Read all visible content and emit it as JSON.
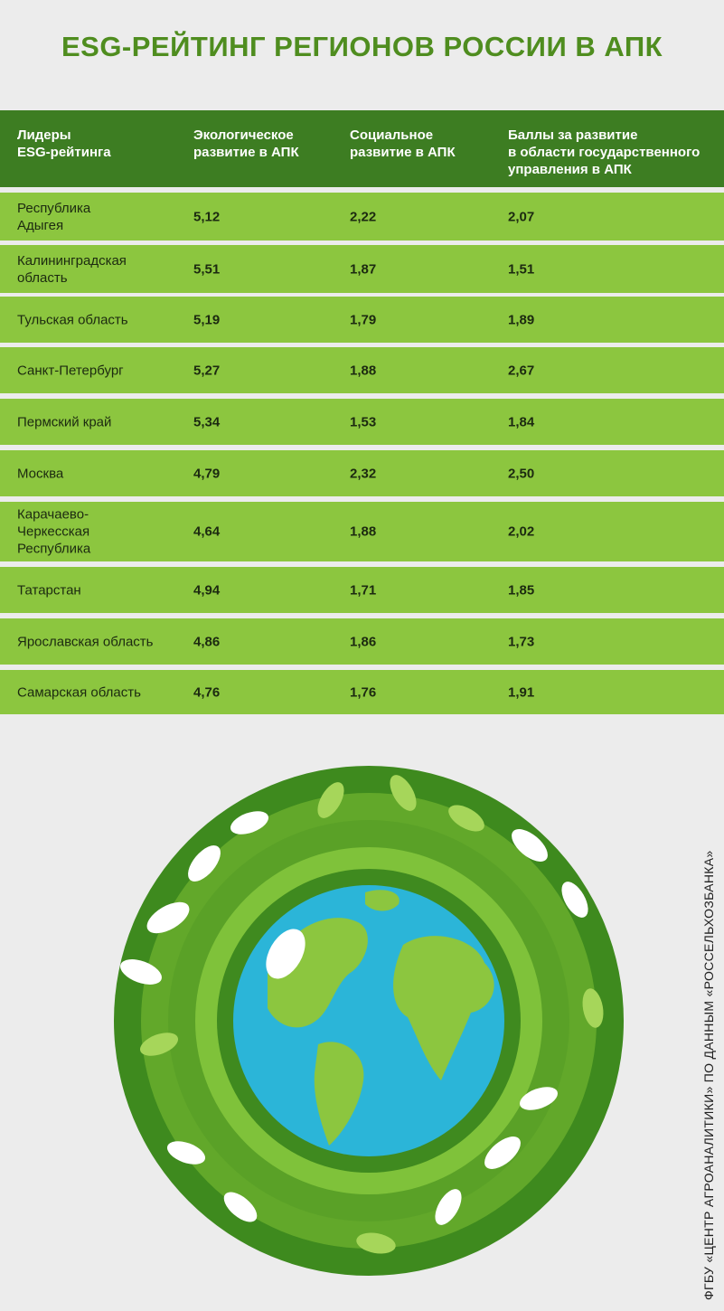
{
  "title": "ESG-РЕЙТИНГ РЕГИОНОВ РОССИИ В АПК",
  "colors": {
    "header_bg": "#3d7d22",
    "row_bg": "#8cc63f",
    "title": "#4f8d1f",
    "page_bg": "#ececec"
  },
  "chart_data": {
    "type": "table",
    "columns": [
      "Лидеры\nESG-рейтинга",
      "Экологическое\nразвитие в АПК",
      "Социальное\nразвитие в АПК",
      "Баллы за развитие\nв области государственного\nуправления в АПК"
    ],
    "rows": [
      {
        "region": "Республика\nАдыгея",
        "eco": "5,12",
        "social": "2,22",
        "gov": "2,07"
      },
      {
        "region": "Калининградская\nобласть",
        "eco": "5,51",
        "social": "1,87",
        "gov": "1,51"
      },
      {
        "region": "Тульская область",
        "eco": "5,19",
        "social": "1,79",
        "gov": "1,89"
      },
      {
        "region": "Санкт-Петербург",
        "eco": "5,27",
        "social": "1,88",
        "gov": "2,67"
      },
      {
        "region": "Пермский край",
        "eco": "5,34",
        "social": "1,53",
        "gov": "1,84"
      },
      {
        "region": "Москва",
        "eco": "4,79",
        "social": "2,32",
        "gov": "2,50"
      },
      {
        "region": "Карачаево-\nЧеркесская\nРеспублика",
        "eco": "4,64",
        "social": "1,88",
        "gov": "2,02"
      },
      {
        "region": "Татарстан",
        "eco": "4,94",
        "social": "1,71",
        "gov": "1,85"
      },
      {
        "region": "Ярославская область",
        "eco": "4,86",
        "social": "1,86",
        "gov": "1,73"
      },
      {
        "region": "Самарская область",
        "eco": "4,76",
        "social": "1,76",
        "gov": "1,91"
      }
    ]
  },
  "source": "ФГБУ «ЦЕНТР АГРОАНАЛИТИКИ» ПО ДАННЫМ «РОССЕЛЬХОЗБАНКА»"
}
